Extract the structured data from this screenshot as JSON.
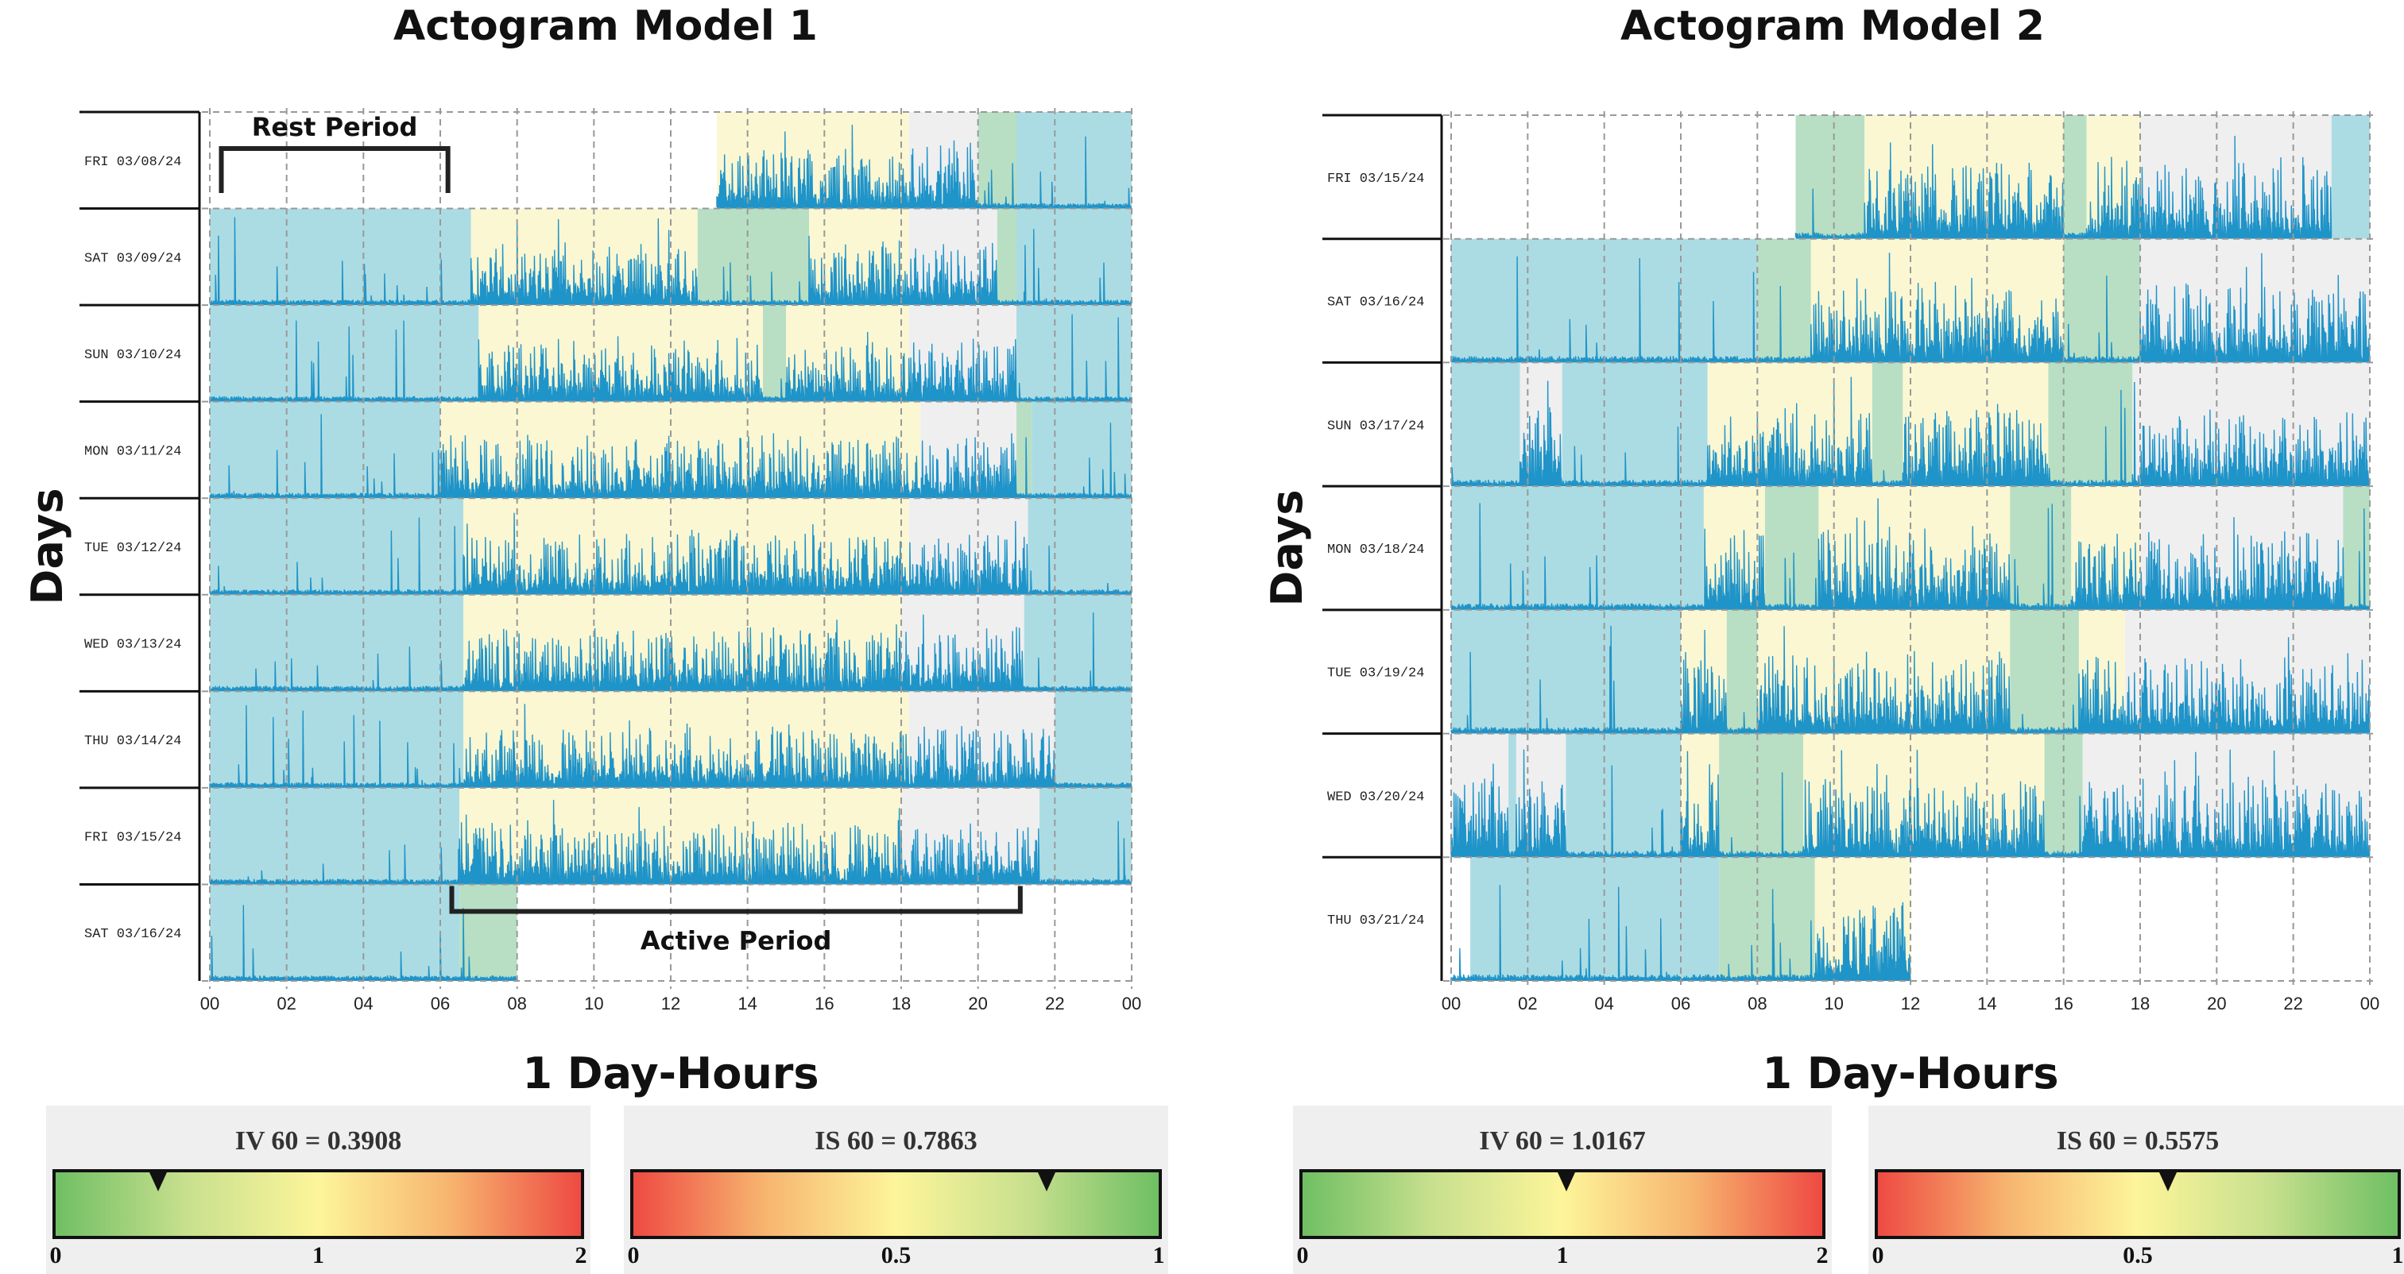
{
  "colors": {
    "rest": "#acdce3",
    "active": "#fbf7d2",
    "gray": "#efefef",
    "transition": "#b8dfc4",
    "activity": "#1f94c9",
    "grid": "#999999"
  },
  "chart_data": [
    {
      "type": "actogram",
      "title": "Actogram Model 1",
      "ylabel": "Days",
      "xlabel": "1 Day-Hours",
      "x_ticks": [
        "00",
        "02",
        "04",
        "06",
        "08",
        "10",
        "12",
        "14",
        "16",
        "18",
        "20",
        "22",
        "00"
      ],
      "xlim": [
        0,
        24
      ],
      "grid": true,
      "annotations": [
        {
          "label": "Rest Period",
          "day_index": 0,
          "start_hour": 0.3,
          "end_hour": 6.2,
          "position": "above"
        },
        {
          "label": "Active Period",
          "day_index": 8,
          "start_hour": 6.3,
          "end_hour": 21.1,
          "position": "below"
        }
      ],
      "days": [
        {
          "label": "FRI 03/08/24",
          "activity": [
            13.2,
            24
          ],
          "bands": [
            [
              13.2,
              18.2,
              "active"
            ],
            [
              18.2,
              20,
              "gray"
            ],
            [
              20,
              21,
              "transition"
            ],
            [
              21,
              24,
              "rest"
            ]
          ]
        },
        {
          "label": "SAT 03/09/24",
          "activity": [
            0,
            24
          ],
          "bands": [
            [
              0,
              6.8,
              "rest"
            ],
            [
              6.8,
              12.7,
              "active"
            ],
            [
              12.7,
              15.6,
              "transition"
            ],
            [
              15.6,
              18.2,
              "active"
            ],
            [
              18.2,
              20.5,
              "gray"
            ],
            [
              20.5,
              21,
              "transition"
            ],
            [
              21,
              24,
              "rest"
            ]
          ]
        },
        {
          "label": "SUN 03/10/24",
          "activity": [
            0,
            24
          ],
          "bands": [
            [
              0,
              7,
              "rest"
            ],
            [
              7,
              14.4,
              "active"
            ],
            [
              14.4,
              15,
              "transition"
            ],
            [
              15,
              18.2,
              "active"
            ],
            [
              18.2,
              21,
              "gray"
            ],
            [
              21,
              24,
              "rest"
            ]
          ]
        },
        {
          "label": "MON 03/11/24",
          "activity": [
            0,
            24
          ],
          "bands": [
            [
              0,
              6,
              "rest"
            ],
            [
              6,
              18.5,
              "active"
            ],
            [
              18.5,
              21,
              "gray"
            ],
            [
              21,
              21.4,
              "transition"
            ],
            [
              21.4,
              24,
              "rest"
            ]
          ]
        },
        {
          "label": "TUE 03/12/24",
          "activity": [
            0,
            24
          ],
          "bands": [
            [
              0,
              6.6,
              "rest"
            ],
            [
              6.6,
              18.2,
              "active"
            ],
            [
              18.2,
              21.3,
              "gray"
            ],
            [
              21.3,
              24,
              "rest"
            ]
          ]
        },
        {
          "label": "WED 03/13/24",
          "activity": [
            0,
            24
          ],
          "bands": [
            [
              0,
              6.6,
              "rest"
            ],
            [
              6.6,
              18,
              "active"
            ],
            [
              18,
              21.2,
              "gray"
            ],
            [
              21.2,
              24,
              "rest"
            ]
          ]
        },
        {
          "label": "THU 03/14/24",
          "activity": [
            0,
            24
          ],
          "bands": [
            [
              0,
              6.6,
              "rest"
            ],
            [
              6.6,
              18.2,
              "active"
            ],
            [
              18.2,
              22,
              "gray"
            ],
            [
              22,
              24,
              "rest"
            ]
          ]
        },
        {
          "label": "FRI 03/15/24",
          "activity": [
            0,
            24
          ],
          "bands": [
            [
              0,
              6.5,
              "rest"
            ],
            [
              6.5,
              18,
              "active"
            ],
            [
              18,
              21.6,
              "gray"
            ],
            [
              21.6,
              24,
              "rest"
            ]
          ]
        },
        {
          "label": "SAT 03/16/24",
          "activity": [
            0,
            8
          ],
          "bands": [
            [
              0,
              6.5,
              "rest"
            ],
            [
              6.5,
              8,
              "transition"
            ]
          ]
        }
      ],
      "metrics": [
        {
          "label": "IV 60 = 0.3908",
          "value": 0.3908,
          "range": [
            0,
            2
          ],
          "ticks": [
            "0",
            "1",
            "2"
          ],
          "scale": "green-to-red"
        },
        {
          "label": "IS 60 = 0.7863",
          "value": 0.7863,
          "range": [
            0,
            1
          ],
          "ticks": [
            "0",
            "0.5",
            "1"
          ],
          "scale": "red-to-green"
        }
      ]
    },
    {
      "type": "actogram",
      "title": "Actogram Model 2",
      "ylabel": "Days",
      "xlabel": "1 Day-Hours",
      "x_ticks": [
        "00",
        "02",
        "04",
        "06",
        "08",
        "10",
        "12",
        "14",
        "16",
        "18",
        "20",
        "22",
        "00"
      ],
      "xlim": [
        0,
        24
      ],
      "grid": true,
      "annotations": [],
      "days": [
        {
          "label": "FRI 03/15/24",
          "activity": [
            9,
            23
          ],
          "bands": [
            [
              9,
              10.8,
              "transition"
            ],
            [
              10.8,
              16,
              "active"
            ],
            [
              16,
              16.6,
              "transition"
            ],
            [
              16.6,
              18,
              "active"
            ],
            [
              18,
              23,
              "gray"
            ],
            [
              23,
              24,
              "rest"
            ]
          ]
        },
        {
          "label": "SAT 03/16/24",
          "activity": [
            0,
            24
          ],
          "bands": [
            [
              0,
              8,
              "rest"
            ],
            [
              8,
              9.4,
              "transition"
            ],
            [
              9.4,
              16,
              "active"
            ],
            [
              16,
              18,
              "transition"
            ],
            [
              18,
              24,
              "gray"
            ]
          ]
        },
        {
          "label": "SUN 03/17/24",
          "activity": [
            0,
            24
          ],
          "bands": [
            [
              0,
              1.8,
              "rest"
            ],
            [
              1.8,
              2.9,
              "gray"
            ],
            [
              2.9,
              6.7,
              "rest"
            ],
            [
              6.7,
              11,
              "active"
            ],
            [
              11,
              11.8,
              "transition"
            ],
            [
              11.8,
              15.6,
              "active"
            ],
            [
              15.6,
              17.8,
              "transition"
            ],
            [
              17.8,
              24,
              "gray"
            ]
          ]
        },
        {
          "label": "MON 03/18/24",
          "activity": [
            0,
            24
          ],
          "bands": [
            [
              0,
              6.6,
              "rest"
            ],
            [
              6.6,
              8.2,
              "active"
            ],
            [
              8.2,
              9.6,
              "transition"
            ],
            [
              9.6,
              14.6,
              "active"
            ],
            [
              14.6,
              16.2,
              "transition"
            ],
            [
              16.2,
              18,
              "active"
            ],
            [
              18,
              23.3,
              "gray"
            ],
            [
              23.3,
              24,
              "transition"
            ]
          ]
        },
        {
          "label": "TUE 03/19/24",
          "activity": [
            0,
            24
          ],
          "bands": [
            [
              0,
              6,
              "rest"
            ],
            [
              6,
              7.2,
              "active"
            ],
            [
              7.2,
              8,
              "transition"
            ],
            [
              8,
              14.6,
              "active"
            ],
            [
              14.6,
              16.4,
              "transition"
            ],
            [
              16.4,
              17.6,
              "active"
            ],
            [
              17.6,
              24,
              "gray"
            ]
          ]
        },
        {
          "label": "WED 03/20/24",
          "activity": [
            0,
            24
          ],
          "bands": [
            [
              0,
              1.5,
              "gray"
            ],
            [
              1.5,
              1.7,
              "rest"
            ],
            [
              1.7,
              3,
              "gray"
            ],
            [
              3,
              6,
              "rest"
            ],
            [
              6,
              7,
              "active"
            ],
            [
              7,
              9.2,
              "transition"
            ],
            [
              9.2,
              15.5,
              "active"
            ],
            [
              15.5,
              16.5,
              "transition"
            ],
            [
              16.5,
              24,
              "gray"
            ]
          ]
        },
        {
          "label": "THU 03/21/24",
          "activity": [
            0,
            12
          ],
          "bands": [
            [
              0.5,
              7,
              "rest"
            ],
            [
              7,
              9.5,
              "transition"
            ],
            [
              9.5,
              12,
              "active"
            ]
          ]
        }
      ],
      "metrics": [
        {
          "label": "IV 60 = 1.0167",
          "value": 1.0167,
          "range": [
            0,
            2
          ],
          "ticks": [
            "0",
            "1",
            "2"
          ],
          "scale": "green-to-red"
        },
        {
          "label": "IS 60 = 0.5575",
          "value": 0.5575,
          "range": [
            0,
            1
          ],
          "ticks": [
            "0",
            "0.5",
            "1"
          ],
          "scale": "red-to-green"
        }
      ]
    }
  ]
}
